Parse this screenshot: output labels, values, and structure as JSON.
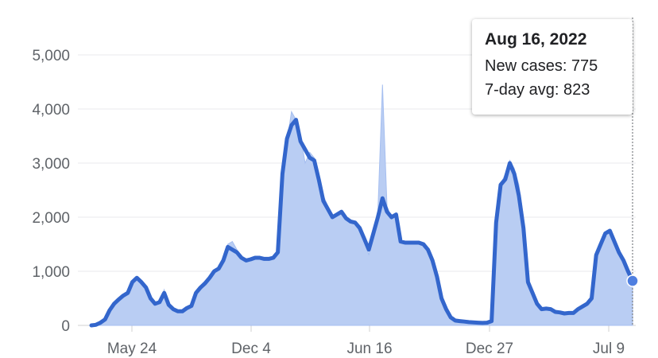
{
  "chart_data": {
    "type": "area",
    "title": "",
    "xlabel": "",
    "ylabel": "",
    "ylim": [
      0,
      5000
    ],
    "yticks": [
      0,
      1000,
      2000,
      3000,
      4000,
      5000
    ],
    "ytick_labels": [
      "0",
      "1,000",
      "2,000",
      "3,000",
      "4,000",
      "5,000"
    ],
    "xtick_labels": [
      "May 24",
      "Dec 4",
      "Jun 16",
      "Dec 27",
      "Jul 9"
    ],
    "grid": true,
    "legend": "none",
    "colors": {
      "area": "#b9cdf3",
      "line": "#3366cc",
      "grid": "#e8eaed",
      "axis": "#d0d0d0",
      "cursor": "#5f6368"
    },
    "series": [
      {
        "name": "New cases",
        "values": [
          0,
          10,
          60,
          120,
          300,
          420,
          500,
          560,
          600,
          820,
          900,
          780,
          700,
          450,
          400,
          430,
          660,
          350,
          300,
          260,
          260,
          330,
          360,
          620,
          700,
          800,
          900,
          1000,
          1050,
          1200,
          1500,
          1550,
          1400,
          1250,
          1200,
          1230,
          1250,
          1250,
          1230,
          1250,
          1250,
          1400,
          2800,
          3400,
          3950,
          3800,
          3500,
          3000,
          3200,
          3100,
          2700,
          2400,
          2200,
          2000,
          2050,
          2100,
          1950,
          1920,
          1900,
          1800,
          1600,
          1300,
          1700,
          2100,
          4450,
          2200,
          2000,
          2050,
          1550,
          1520,
          1520,
          1520,
          1500,
          1500,
          1400,
          1150,
          900,
          500,
          300,
          150,
          90,
          80,
          70,
          60,
          50,
          50,
          40,
          50,
          80,
          2000,
          2600,
          2800,
          3050,
          2900,
          2600,
          2000,
          900,
          600,
          400,
          300,
          310,
          300,
          250,
          240,
          220,
          230,
          230,
          300,
          350,
          400,
          500,
          1200,
          1500,
          1700,
          1750,
          1500,
          1350,
          1200,
          1000,
          775
        ]
      },
      {
        "name": "7-day avg",
        "values": [
          0,
          10,
          50,
          110,
          280,
          400,
          480,
          550,
          600,
          800,
          880,
          800,
          700,
          500,
          400,
          430,
          600,
          380,
          300,
          260,
          260,
          320,
          360,
          600,
          700,
          780,
          880,
          1000,
          1050,
          1200,
          1450,
          1400,
          1350,
          1250,
          1200,
          1220,
          1250,
          1250,
          1230,
          1230,
          1250,
          1350,
          2800,
          3450,
          3700,
          3800,
          3400,
          3250,
          3100,
          3050,
          2700,
          2300,
          2150,
          2000,
          2050,
          2100,
          1980,
          1920,
          1900,
          1800,
          1600,
          1400,
          1700,
          2000,
          2350,
          2100,
          2000,
          2050,
          1550,
          1530,
          1530,
          1530,
          1530,
          1500,
          1400,
          1200,
          900,
          500,
          300,
          150,
          90,
          80,
          70,
          60,
          55,
          50,
          45,
          50,
          80,
          1900,
          2600,
          2700,
          3000,
          2800,
          2400,
          1800,
          800,
          600,
          400,
          300,
          310,
          300,
          250,
          240,
          220,
          230,
          230,
          300,
          350,
          400,
          500,
          1300,
          1500,
          1700,
          1750,
          1550,
          1350,
          1200,
          1000,
          823
        ]
      }
    ],
    "tooltip": {
      "date": "Aug 16, 2022",
      "new_cases_line": "New cases: 775",
      "avg_line": "7-day avg: 823"
    }
  }
}
